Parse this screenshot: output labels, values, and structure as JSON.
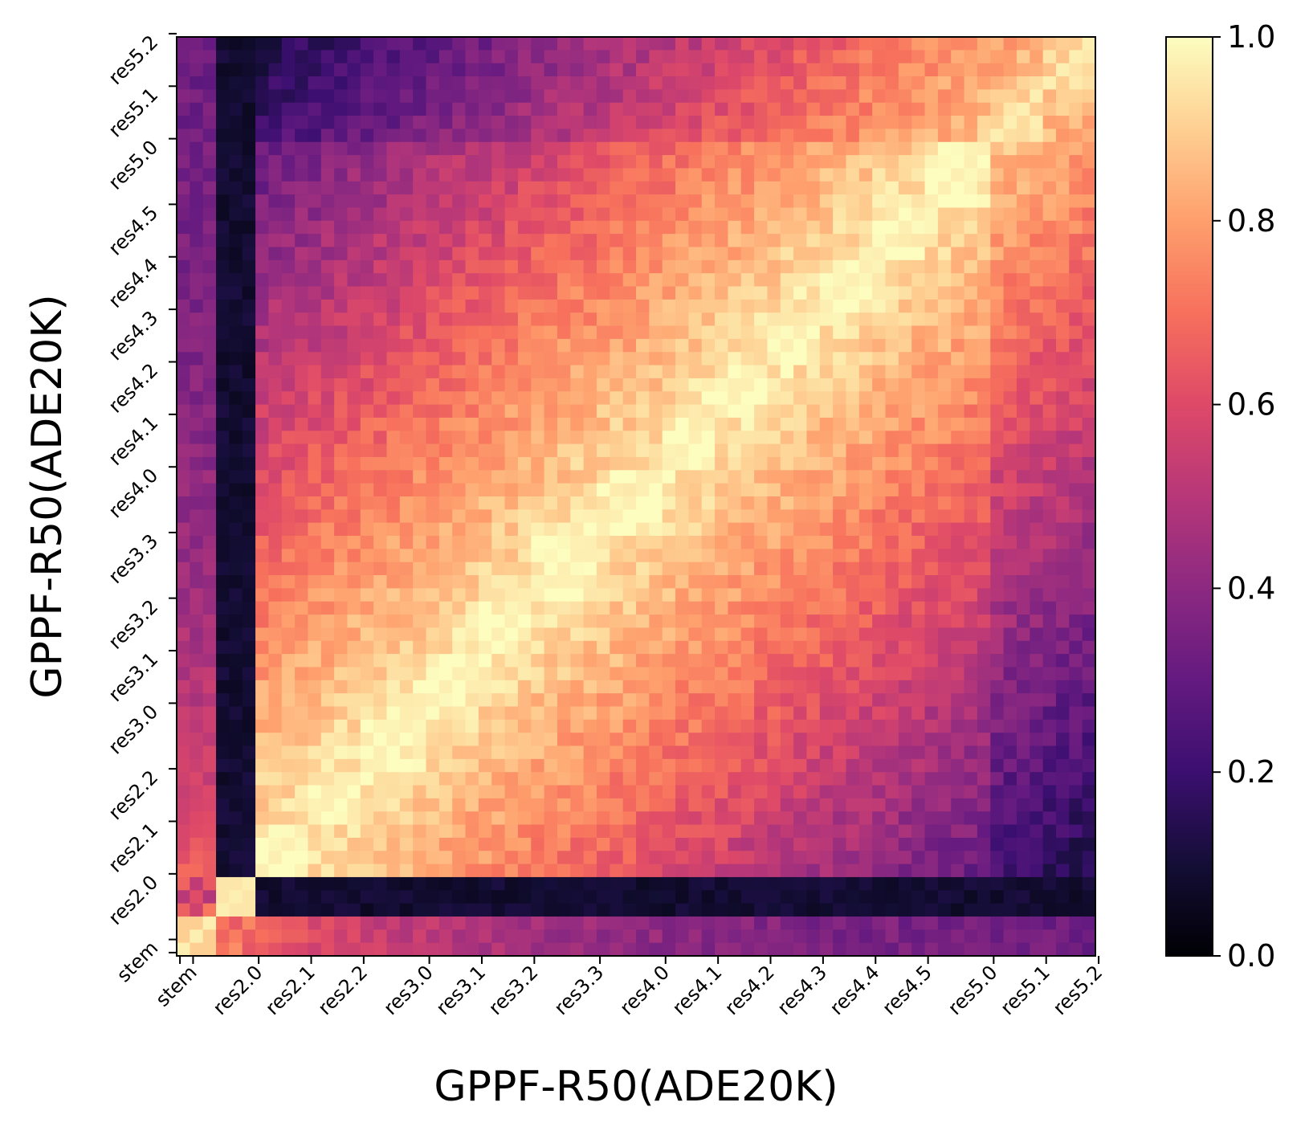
{
  "chart_data": {
    "type": "heatmap",
    "title": "",
    "xlabel": "GPPF-R50(ADE20K)",
    "ylabel": "GPPF-R50(ADE20K)",
    "colormap": "magma",
    "vmin": 0.0,
    "vmax": 1.0,
    "grid_size": 70,
    "layer_ticks": [
      {
        "label": "stem",
        "index": 0
      },
      {
        "label": "stem",
        "index": 1
      },
      {
        "label": "res2.0",
        "index": 6
      },
      {
        "label": "res2.1",
        "index": 10
      },
      {
        "label": "res2.2",
        "index": 14
      },
      {
        "label": "res3.0",
        "index": 19
      },
      {
        "label": "res3.1",
        "index": 23
      },
      {
        "label": "res3.2",
        "index": 27
      },
      {
        "label": "res3.3",
        "index": 32
      },
      {
        "label": "res4.0",
        "index": 37
      },
      {
        "label": "res4.1",
        "index": 41
      },
      {
        "label": "res4.2",
        "index": 45
      },
      {
        "label": "res4.3",
        "index": 49
      },
      {
        "label": "res4.4",
        "index": 53
      },
      {
        "label": "res4.5",
        "index": 57
      },
      {
        "label": "res5.0",
        "index": 62
      },
      {
        "label": "res5.1",
        "index": 66
      },
      {
        "label": "res5.2",
        "index": 70
      }
    ],
    "colorbar_ticks": [
      {
        "label": "0.0",
        "value": 0.0
      },
      {
        "label": "0.2",
        "value": 0.2
      },
      {
        "label": "0.4",
        "value": 0.4
      },
      {
        "label": "0.6",
        "value": 0.6
      },
      {
        "label": "0.8",
        "value": 0.8
      },
      {
        "label": "1.0",
        "value": 1.0
      }
    ],
    "block_starts": [
      6,
      10,
      14,
      19,
      23,
      27,
      32,
      37,
      41,
      45,
      49,
      53,
      57,
      62,
      66
    ],
    "dark_layers": [
      3,
      4,
      5
    ],
    "colorbar_colors": [
      "#000004",
      "#140e36",
      "#3b0f70",
      "#641a80",
      "#8c2981",
      "#b73779",
      "#de4968",
      "#f7705c",
      "#fe9f6d",
      "#fecf92",
      "#fcfdbf"
    ]
  }
}
